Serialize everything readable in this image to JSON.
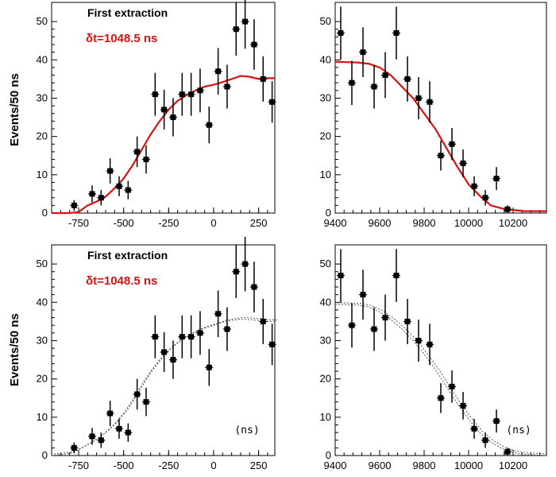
{
  "ylabel": "Events/50 ns",
  "chart_data": [
    {
      "type": "scatter",
      "panel": "top-left",
      "annotation": "First extraction",
      "annotation2": "δt=1048.5 ns",
      "unit_label": "",
      "xlim": [
        -900,
        340
      ],
      "ylim": [
        0,
        55
      ],
      "xticks": [
        -750,
        -500,
        -250,
        0,
        250
      ],
      "yticks": [
        0,
        10,
        20,
        30,
        40,
        50
      ],
      "fit_style": "red",
      "fit_color": "#dd1111",
      "x": [
        -775,
        -675,
        -625,
        -575,
        -525,
        -475,
        -425,
        -375,
        -325,
        -275,
        -225,
        -175,
        -125,
        -75,
        -25,
        25,
        75,
        125,
        175,
        225,
        275,
        325
      ],
      "y": [
        2,
        5,
        4,
        11,
        7,
        6,
        16,
        14,
        31,
        27,
        25,
        31,
        31,
        32,
        23,
        37,
        33,
        48,
        50,
        44,
        35,
        29
      ],
      "err": [
        1.4,
        2.2,
        2,
        3.3,
        2.6,
        2.4,
        4,
        3.7,
        5.6,
        5.2,
        5,
        5.6,
        5.6,
        5.7,
        4.8,
        6.1,
        5.7,
        6.9,
        7.1,
        6.6,
        5.9,
        5.4
      ],
      "fit_x": [
        -900,
        -800,
        -750,
        -700,
        -650,
        -600,
        -550,
        -500,
        -450,
        -400,
        -350,
        -300,
        -250,
        -200,
        -150,
        -100,
        -50,
        0,
        50,
        100,
        150,
        200,
        250,
        300,
        340
      ],
      "fit_y": [
        0,
        0,
        0.3,
        2,
        3,
        4.3,
        6.5,
        9,
        12.5,
        16.5,
        20.5,
        24,
        27,
        29.3,
        30.8,
        32,
        33,
        33.5,
        34.2,
        35,
        35.8,
        35.6,
        35,
        35.2,
        35.2
      ]
    },
    {
      "type": "scatter",
      "panel": "top-right",
      "annotation": "",
      "annotation2": "",
      "unit_label": "",
      "xlim": [
        9400,
        10350
      ],
      "ylim": [
        0,
        55
      ],
      "xticks": [
        9400,
        9600,
        9800,
        10000,
        10200
      ],
      "yticks": [
        0,
        10,
        20,
        30,
        40,
        50
      ],
      "fit_style": "red",
      "fit_color": "#dd1111",
      "x": [
        9425,
        9475,
        9525,
        9575,
        9625,
        9675,
        9725,
        9775,
        9825,
        9875,
        9925,
        9975,
        10025,
        10075,
        10125,
        10175
      ],
      "y": [
        47,
        34,
        42,
        33,
        36,
        47,
        35,
        30,
        29,
        15,
        18,
        13,
        7,
        4,
        9,
        1
      ],
      "err": [
        6.9,
        5.8,
        6.5,
        5.7,
        6,
        6.9,
        5.9,
        5.5,
        5.4,
        3.9,
        4.2,
        3.6,
        2.6,
        2,
        3,
        1
      ],
      "fit_x": [
        9400,
        9500,
        9550,
        9600,
        9650,
        9700,
        9750,
        9800,
        9850,
        9900,
        9950,
        10000,
        10050,
        10100,
        10150,
        10200,
        10250,
        10350
      ],
      "fit_y": [
        39.5,
        39.3,
        39,
        38,
        36,
        33,
        30,
        26,
        22,
        17,
        12,
        7.5,
        4.5,
        2,
        1.2,
        0.8,
        0.5,
        0.5
      ]
    },
    {
      "type": "scatter",
      "panel": "bottom-left",
      "annotation": "First extraction",
      "annotation2": "δt=1048.5 ns",
      "unit_label": "(ns)",
      "xlim": [
        -900,
        340
      ],
      "ylim": [
        0,
        55
      ],
      "xticks": [
        -750,
        -500,
        -250,
        0,
        250
      ],
      "yticks": [
        0,
        10,
        20,
        30,
        40,
        50
      ],
      "fit_style": "dotted",
      "fit_color": "#555555",
      "x": [
        -775,
        -675,
        -625,
        -575,
        -525,
        -475,
        -425,
        -375,
        -325,
        -275,
        -225,
        -175,
        -125,
        -75,
        -25,
        25,
        75,
        125,
        175,
        225,
        275,
        325
      ],
      "y": [
        2,
        5,
        4,
        11,
        7,
        6,
        16,
        14,
        31,
        27,
        25,
        31,
        31,
        32,
        23,
        37,
        33,
        48,
        50,
        44,
        35,
        29
      ],
      "err": [
        1.4,
        2.2,
        2,
        3.3,
        2.6,
        2.4,
        4,
        3.7,
        5.6,
        5.2,
        5,
        5.6,
        5.6,
        5.7,
        4.8,
        6.1,
        5.7,
        6.9,
        7.1,
        6.6,
        5.9,
        5.4
      ],
      "fit_x": [
        -900,
        -800,
        -750,
        -700,
        -650,
        -600,
        -550,
        -500,
        -450,
        -400,
        -350,
        -300,
        -250,
        -200,
        -150,
        -100,
        -50,
        0,
        50,
        100,
        150,
        200,
        250,
        300,
        340
      ],
      "fit_y": [
        0,
        0.5,
        1.5,
        2.8,
        4.3,
        6,
        8.3,
        11,
        14.5,
        18.5,
        22,
        25,
        27.5,
        29.5,
        31,
        32.3,
        33.3,
        34,
        34.8,
        35.3,
        35.6,
        35.5,
        35.3,
        35,
        35
      ]
    },
    {
      "type": "scatter",
      "panel": "bottom-right",
      "annotation": "",
      "annotation2": "",
      "unit_label": "(ns)",
      "xlim": [
        9400,
        10350
      ],
      "ylim": [
        0,
        55
      ],
      "xticks": [
        9400,
        9600,
        9800,
        10000,
        10200
      ],
      "yticks": [
        0,
        10,
        20,
        30,
        40,
        50
      ],
      "fit_style": "dotted",
      "fit_color": "#555555",
      "x": [
        9425,
        9475,
        9525,
        9575,
        9625,
        9675,
        9725,
        9775,
        9825,
        9875,
        9925,
        9975,
        10025,
        10075,
        10125,
        10175
      ],
      "y": [
        47,
        34,
        42,
        33,
        36,
        47,
        35,
        30,
        29,
        15,
        18,
        13,
        7,
        4,
        9,
        1
      ],
      "err": [
        6.9,
        5.8,
        6.5,
        5.7,
        6,
        6.9,
        5.9,
        5.5,
        5.4,
        3.9,
        4.2,
        3.6,
        2.6,
        2,
        3,
        1
      ],
      "fit_x": [
        9400,
        9500,
        9550,
        9600,
        9650,
        9700,
        9750,
        9800,
        9850,
        9900,
        9950,
        10000,
        10050,
        10100,
        10150,
        10200,
        10250,
        10350
      ],
      "fit_y": [
        39.5,
        39.3,
        38.8,
        37.5,
        35.5,
        33,
        30,
        26.5,
        22.5,
        18,
        13.5,
        9.5,
        6,
        3.5,
        1.8,
        0.8,
        0.3,
        0
      ]
    }
  ]
}
